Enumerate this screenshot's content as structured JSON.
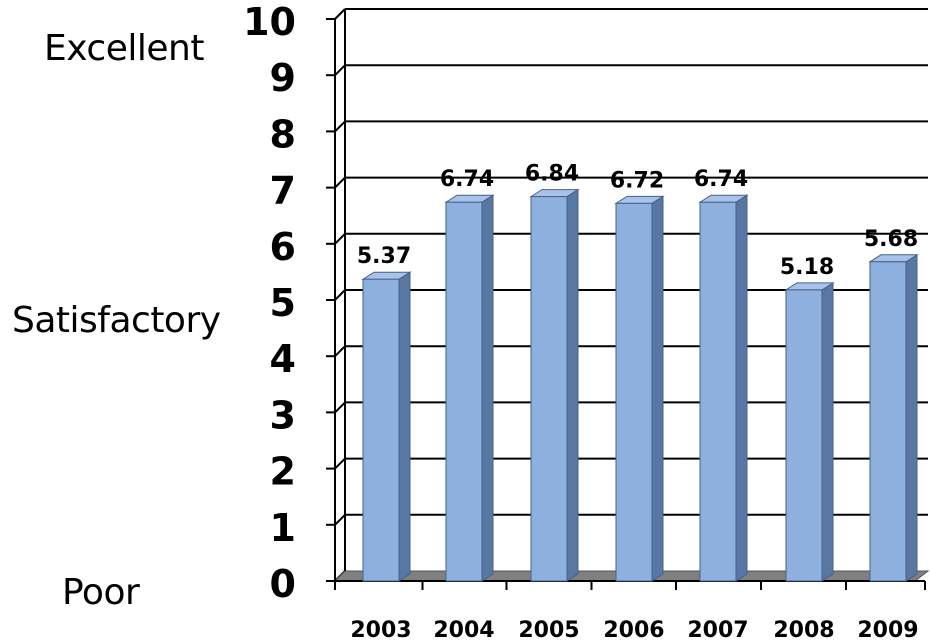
{
  "rating_labels": {
    "top": "Excellent",
    "middle": "Satisfactory",
    "bottom": "Poor"
  },
  "colors": {
    "bar_front": "#8db0de",
    "bar_side": "#5877a3",
    "bar_top": "#a9c3e8",
    "floor": "#808080",
    "grid": "#000000",
    "text": "#000000"
  },
  "chart_data": {
    "type": "bar",
    "categories": [
      "2003",
      "2004",
      "2005",
      "2006",
      "2007",
      "2008",
      "2009"
    ],
    "values": [
      5.37,
      6.74,
      6.84,
      6.72,
      6.74,
      5.18,
      5.68
    ],
    "value_labels": [
      "5.37",
      "6.74",
      "6.84",
      "6.72",
      "6.74",
      "5.18",
      "5.68"
    ],
    "y_ticks": [
      "0",
      "1",
      "2",
      "3",
      "4",
      "5",
      "6",
      "7",
      "8",
      "9",
      "10"
    ],
    "ylim": [
      0,
      10
    ],
    "grid": true,
    "legend": "none",
    "style": "3d-column"
  }
}
